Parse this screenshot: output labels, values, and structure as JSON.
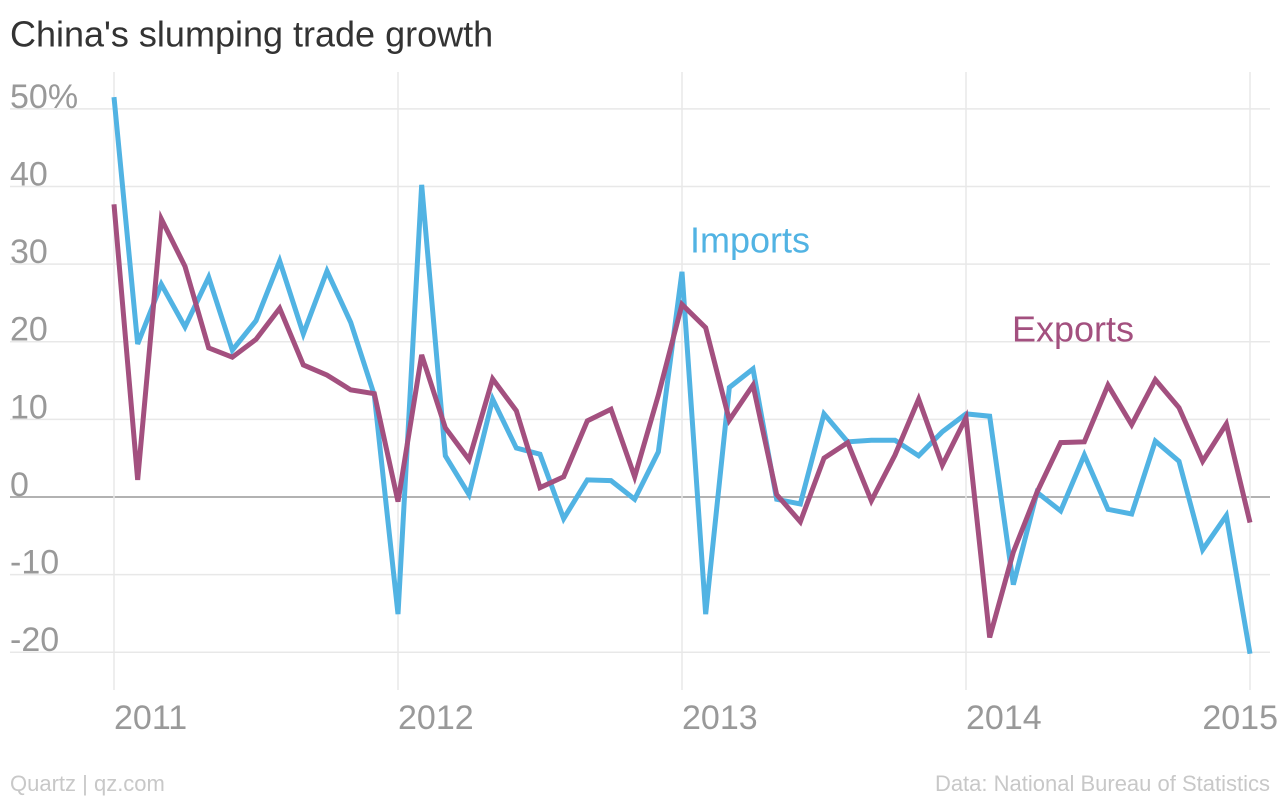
{
  "chart_data": {
    "type": "line",
    "title": "China's slumping trade growth",
    "source": "Quartz | qz.com",
    "note": "Data: National Bureau of Statistics",
    "x": [
      0,
      1,
      2,
      3,
      4,
      5,
      6,
      7,
      8,
      9,
      10,
      11,
      12,
      13,
      14,
      15,
      16,
      17,
      18,
      19,
      20,
      21,
      22,
      23,
      24,
      25,
      26,
      27,
      28,
      29,
      30,
      31,
      32,
      33,
      34,
      35,
      36,
      37,
      38,
      39,
      40,
      41,
      42,
      43,
      44,
      45,
      46,
      47,
      48
    ],
    "xlim": [
      0,
      48
    ],
    "xticks": [
      {
        "value": 0,
        "label": "2011"
      },
      {
        "value": 12,
        "label": "2012"
      },
      {
        "value": 24,
        "label": "2013"
      },
      {
        "value": 36,
        "label": "2014"
      },
      {
        "value": 48,
        "label": "2015"
      }
    ],
    "ylim": [
      -25,
      55
    ],
    "yticks": [
      {
        "value": 50,
        "label": "50%"
      },
      40,
      30,
      20,
      10,
      0,
      -10,
      -20
    ],
    "grid": true,
    "series": [
      {
        "name": "Imports",
        "color": "#51b3e3",
        "values": [
          51.5,
          19.7,
          27.4,
          21.9,
          28.3,
          18.9,
          22.7,
          30.4,
          21.0,
          29.1,
          22.5,
          13.1,
          -15.1,
          40.2,
          5.3,
          0.3,
          12.6,
          6.3,
          5.5,
          -2.8,
          2.2,
          2.1,
          -0.3,
          5.8,
          29.0,
          -15.1,
          14.1,
          16.5,
          -0.3,
          -0.9,
          10.7,
          7.1,
          7.3,
          7.3,
          5.3,
          8.4,
          10.7,
          10.4,
          -11.3,
          0.6,
          -1.8,
          5.4,
          -1.6,
          -2.2,
          7.2,
          4.6,
          -6.8,
          -2.4,
          -20.2
        ]
      },
      {
        "name": "Exports",
        "color": "#a3507f",
        "values": [
          37.7,
          2.2,
          35.8,
          29.7,
          19.2,
          18.0,
          20.3,
          24.3,
          17.0,
          15.7,
          13.8,
          13.3,
          -0.6,
          18.3,
          8.9,
          4.8,
          15.2,
          11.1,
          1.2,
          2.6,
          9.8,
          11.3,
          2.6,
          13.1,
          24.8,
          21.8,
          9.9,
          14.4,
          0.3,
          -3.2,
          5.0,
          7.0,
          -0.5,
          5.4,
          12.6,
          4.1,
          10.2,
          -18.1,
          -7.1,
          0.6,
          7.0,
          7.1,
          14.4,
          9.3,
          15.1,
          11.5,
          4.6,
          9.4,
          -3.3
        ]
      }
    ]
  }
}
